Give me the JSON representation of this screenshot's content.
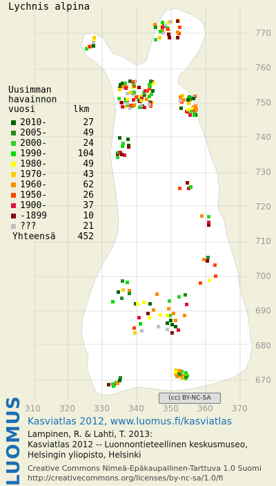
{
  "title": "Lychnis alpina",
  "legend": {
    "heading_lines": [
      "Uusimman",
      "havainnon"
    ],
    "col_year": "vuosi",
    "col_count": "lkm",
    "rows": [
      {
        "label": "2010-",
        "count": "27",
        "color": "#006400"
      },
      {
        "label": "2005-",
        "count": "49",
        "color": "#228b22"
      },
      {
        "label": "2000-",
        "count": "24",
        "color": "#32cd32"
      },
      {
        "label": "1990-",
        "count": "104",
        "color": "#00dd00"
      },
      {
        "label": "1980-",
        "count": "49",
        "color": "#ffff00"
      },
      {
        "label": "1970-",
        "count": "43",
        "color": "#ffcc00"
      },
      {
        "label": "1960-",
        "count": "62",
        "color": "#ff8c00"
      },
      {
        "label": "1950-",
        "count": "26",
        "color": "#ff4500"
      },
      {
        "label": "1900-",
        "count": "37",
        "color": "#dc143c"
      },
      {
        "label": "-1899",
        "count": "10",
        "color": "#8b0000"
      },
      {
        "label": "???",
        "count": "21",
        "color": "#c0c0c0"
      }
    ],
    "total_label": "Yhteensä",
    "total_count": "452"
  },
  "axes": {
    "y_ticks": [
      "770",
      "760",
      "750",
      "740",
      "730",
      "720",
      "710",
      "700",
      "690",
      "680",
      "670"
    ],
    "x_ticks": [
      "310",
      "320",
      "330",
      "340",
      "350",
      "360",
      "370"
    ]
  },
  "cc_badge": "(cc) BY-NC-SA",
  "footer": {
    "brand": "LUOMUS",
    "headline": "Kasviatlas 2012, www.luomus.fi/kasviatlas",
    "citation_lines": [
      "Lampinen, R. & Lahti, T. 2013:",
      "Kasviatlas 2012 -- Luonnontieteellinen keskusmuseo,",
      "Helsingin yliopisto, Helsinki"
    ],
    "license_lines": [
      "Creative Commons Nimeä-Epäkaupallinen-Tarttuva 1.0 Suomi",
      "http://creativecommons.org/licenses/by-nc-sa/1.0/fi"
    ]
  },
  "colors": {
    "background": "#f0f0dc",
    "land": "#ffffff",
    "grid": "#c8c8c8",
    "brand_blue": "#1a6fb5"
  }
}
